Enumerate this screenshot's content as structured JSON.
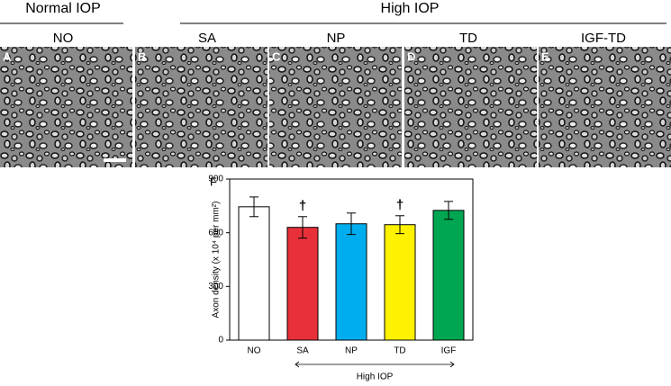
{
  "header": {
    "normal_label": "Normal IOP",
    "high_label": "High IOP"
  },
  "panels": [
    {
      "letter": "A",
      "label": "NO"
    },
    {
      "letter": "B",
      "label": "SA"
    },
    {
      "letter": "C",
      "label": "NP"
    },
    {
      "letter": "D",
      "label": "TD"
    },
    {
      "letter": "E",
      "label": "IGF-TD"
    }
  ],
  "chart_data": {
    "type": "bar",
    "panel_label": "F",
    "ylabel": "Axon density (x 10⁴ per mm²)",
    "categories": [
      "NO",
      "SA",
      "NP",
      "TD",
      "IGF"
    ],
    "values": [
      745,
      630,
      650,
      645,
      725
    ],
    "errors": [
      55,
      60,
      60,
      50,
      50
    ],
    "colors": [
      "#ffffff",
      "#e8303a",
      "#00aeef",
      "#fff200",
      "#00a651"
    ],
    "ylim": [
      0,
      900
    ],
    "yticks": [
      0,
      300,
      600,
      900
    ],
    "annotations": [
      {
        "category_index": 1,
        "text": "†"
      },
      {
        "category_index": 3,
        "text": "†"
      }
    ],
    "group_label": "High IOP"
  }
}
